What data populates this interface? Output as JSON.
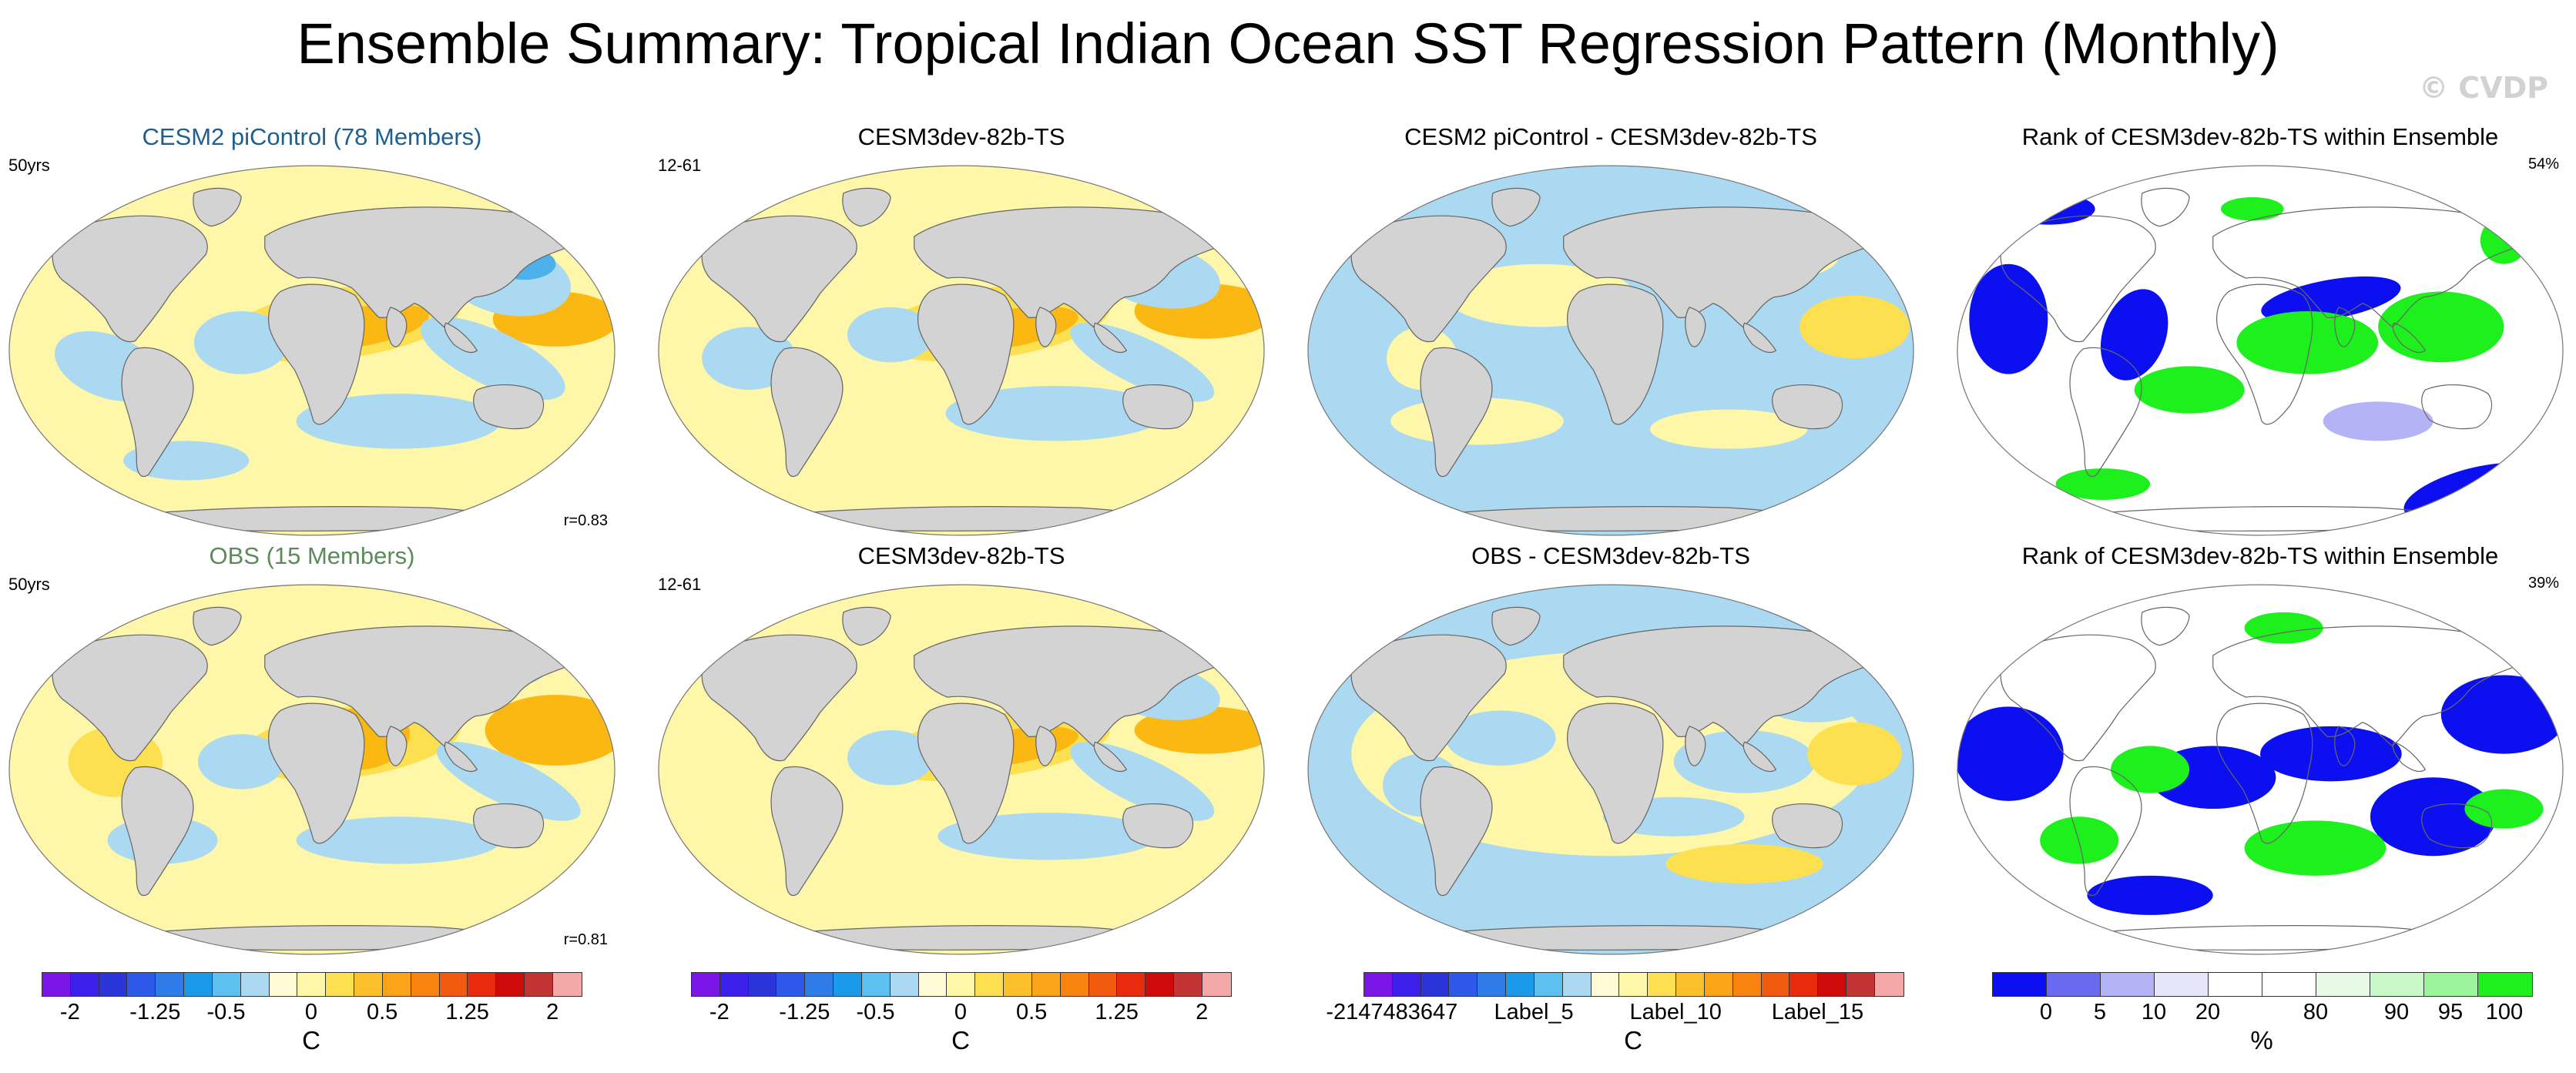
{
  "title": "Ensemble Summary: Tropical Indian Ocean SST Regression Pattern (Monthly)",
  "copyright": "© CVDP",
  "colors": {
    "land": "#d3d3d3",
    "ocean_light_blue": "#abd9f2",
    "ocean_blue": "#8ec8ee",
    "ocean_deep_blue": "#4eb0ea",
    "pale_yellow": "#fef6a9",
    "yellow": "#fde050",
    "orange": "#fbb812",
    "rank_blue": "#0c0ff0",
    "rank_light_blue": "#b3b3f5",
    "rank_pale": "#e6e6fa",
    "rank_green": "#1df01d",
    "rank_light_green": "#c8f7c8",
    "title_blue": "#1f5f8f",
    "title_green": "#5b8a5b"
  },
  "panels": [
    {
      "title": "CESM2 piControl (78 Members)",
      "title_color": "#1f5f8f",
      "left_note": "50yrs",
      "right_note": "",
      "corr": "r=0.83",
      "kind": "sst",
      "variant": 0
    },
    {
      "title": "CESM3dev-82b-TS",
      "title_color": "#000000",
      "left_note": "12-61",
      "right_note": "",
      "corr": "",
      "kind": "sst",
      "variant": 1
    },
    {
      "title": "CESM2 piControl - CESM3dev-82b-TS",
      "title_color": "#000000",
      "left_note": "",
      "right_note": "",
      "corr": "",
      "kind": "diff",
      "variant": 2
    },
    {
      "title": "Rank of CESM3dev-82b-TS within Ensemble",
      "title_color": "#000000",
      "left_note": "",
      "right_note": "54%",
      "corr": "",
      "kind": "rank",
      "variant": 3
    },
    {
      "title": "OBS (15 Members)",
      "title_color": "#5b8a5b",
      "left_note": "50yrs",
      "right_note": "",
      "corr": "r=0.81",
      "kind": "sst",
      "variant": 4
    },
    {
      "title": "CESM3dev-82b-TS",
      "title_color": "#000000",
      "left_note": "12-61",
      "right_note": "",
      "corr": "",
      "kind": "sst",
      "variant": 5
    },
    {
      "title": "OBS - CESM3dev-82b-TS",
      "title_color": "#000000",
      "left_note": "",
      "right_note": "",
      "corr": "",
      "kind": "diff",
      "variant": 6
    },
    {
      "title": "Rank of CESM3dev-82b-TS within Ensemble",
      "title_color": "#000000",
      "left_note": "",
      "right_note": "39%",
      "corr": "",
      "kind": "rank",
      "variant": 7
    }
  ],
  "chart_data": {
    "type": "heatmap",
    "projection": "Robinson (global map panels)",
    "colorbars": [
      {
        "units": "C",
        "colors": [
          "#7b16e6",
          "#3c1fe8",
          "#2a34d9",
          "#2d58e8",
          "#2f7be8",
          "#1a9ae8",
          "#5cc0f0",
          "#abd9f2",
          "#fefbd6",
          "#fef6a9",
          "#fde050",
          "#fbc02a",
          "#fba418",
          "#f9830f",
          "#f25a0d",
          "#e82b0c",
          "#cf0a0a",
          "#c23434",
          "#f5a8a8"
        ],
        "labels": [
          "-2",
          "-1.25",
          "-0.5",
          "0",
          "0.5",
          "1.25",
          "2"
        ],
        "label_positions": [
          0.0526,
          0.2105,
          0.3421,
          0.5,
          0.6316,
          0.7895,
          0.9474
        ]
      },
      {
        "units": "C",
        "colors": [
          "#7b16e6",
          "#3c1fe8",
          "#2a34d9",
          "#2d58e8",
          "#2f7be8",
          "#1a9ae8",
          "#5cc0f0",
          "#abd9f2",
          "#fefbd6",
          "#fef6a9",
          "#fde050",
          "#fbc02a",
          "#fba418",
          "#f9830f",
          "#f25a0d",
          "#e82b0c",
          "#cf0a0a",
          "#c23434",
          "#f5a8a8"
        ],
        "labels": [
          "-2",
          "-1.25",
          "-0.5",
          "0",
          "0.5",
          "1.25",
          "2"
        ],
        "label_positions": [
          0.0526,
          0.2105,
          0.3421,
          0.5,
          0.6316,
          0.7895,
          0.9474
        ]
      },
      {
        "units": "C",
        "colors": [
          "#7b16e6",
          "#3c1fe8",
          "#2a34d9",
          "#2d58e8",
          "#2f7be8",
          "#1a9ae8",
          "#5cc0f0",
          "#abd9f2",
          "#fefbd6",
          "#fef6a9",
          "#fde050",
          "#fbc02a",
          "#fba418",
          "#f9830f",
          "#f25a0d",
          "#e82b0c",
          "#cf0a0a",
          "#c23434",
          "#f5a8a8"
        ],
        "labels": [
          "-2147483647",
          "Label_5",
          "Label_10",
          "Label_15"
        ],
        "label_positions": [
          0.0526,
          0.3158,
          0.5789,
          0.8421
        ]
      },
      {
        "units": "%",
        "colors": [
          "#0c0ff0",
          "#6a6af0",
          "#b3b3f5",
          "#e6e6fa",
          "#ffffff",
          "#ffffff",
          "#e6fae6",
          "#c8f7c8",
          "#9bf39b",
          "#1df01d"
        ],
        "labels": [
          "0",
          "5",
          "10",
          "20",
          "80",
          "90",
          "95",
          "100"
        ],
        "label_positions": [
          0.1,
          0.2,
          0.3,
          0.4,
          0.6,
          0.75,
          0.85,
          0.95
        ]
      }
    ]
  }
}
